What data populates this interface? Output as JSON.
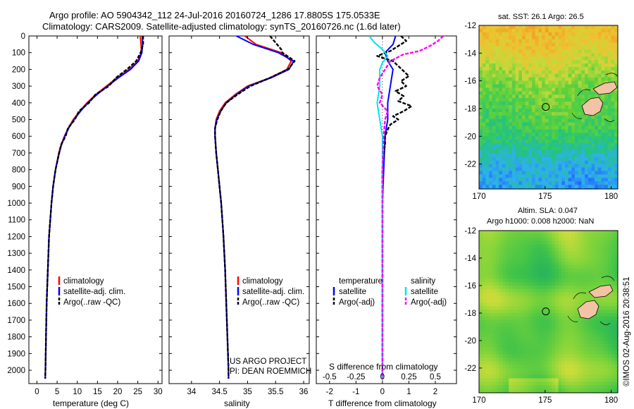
{
  "header": {
    "title_line1": "Argo profile: AO 5904342_112 24-Jul-2016 20160724_1286 17.8805S 175.0533E",
    "title_line2": "Climatology: CARS2009. Satellite-adjusted climatology: synTS_20160726.nc (1.6d later)"
  },
  "colors": {
    "climatology": "#ff0000",
    "satellite": "#0000ff",
    "argo": "#000000",
    "salinity_satellite": "#00e5ee",
    "salinity_argo": "#ff00ff"
  },
  "chart_data": [
    {
      "id": "temperature",
      "type": "line",
      "xlabel": "temperature (deg C)",
      "xlim": [
        -2,
        31
      ],
      "xticks": [
        0,
        5,
        10,
        15,
        20,
        25,
        30
      ],
      "ylim": [
        0,
        2080
      ],
      "yticks": [
        0,
        100,
        200,
        300,
        400,
        500,
        600,
        700,
        800,
        900,
        1000,
        1100,
        1200,
        1300,
        1400,
        1500,
        1600,
        1700,
        1800,
        1900,
        2000
      ],
      "legend": [
        "climatology",
        "satellite-adj. clim.",
        "Argo(..raw -QC)"
      ],
      "series": [
        {
          "name": "climatology",
          "y": [
            0,
            50,
            100,
            150,
            200,
            250,
            300,
            350,
            400,
            450,
            500,
            550,
            600,
            650,
            700,
            800,
            900,
            1000,
            1200,
            1400,
            1600,
            1800,
            2000,
            2050
          ],
          "x": [
            25.6,
            25.8,
            25.9,
            25.0,
            22.8,
            19.8,
            17.2,
            14.6,
            12.4,
            10.6,
            9.0,
            7.8,
            6.8,
            6.0,
            5.4,
            4.6,
            4.0,
            3.6,
            3.0,
            2.7,
            2.4,
            2.25,
            2.1,
            2.05
          ]
        },
        {
          "name": "satellite-adj. clim.",
          "y": [
            0,
            50,
            100,
            150,
            200,
            250,
            300,
            350,
            400,
            450,
            500,
            550,
            600,
            650,
            700,
            800,
            900,
            1000,
            1200,
            1400,
            1600,
            1800,
            2000,
            2050
          ],
          "x": [
            26.1,
            26.2,
            26.0,
            25.2,
            23.2,
            20.2,
            17.5,
            14.9,
            12.6,
            10.8,
            9.2,
            7.9,
            6.9,
            6.1,
            5.5,
            4.6,
            4.0,
            3.6,
            3.0,
            2.7,
            2.4,
            2.25,
            2.1,
            2.05
          ]
        },
        {
          "name": "Argo(..raw -QC)",
          "y": [
            0,
            50,
            100,
            150,
            200,
            250,
            300,
            350,
            400,
            450,
            500,
            550,
            600,
            650,
            700,
            800,
            900,
            1000,
            1200,
            1400,
            1600,
            1800,
            2000,
            2050
          ],
          "x": [
            26.3,
            26.3,
            25.7,
            24.6,
            22.3,
            19.6,
            17.8,
            14.5,
            12.9,
            10.4,
            9.4,
            7.7,
            7.1,
            6.0,
            5.5,
            4.6,
            4.0,
            3.6,
            3.0,
            2.7,
            2.4,
            2.25,
            2.1,
            2.05
          ]
        }
      ]
    },
    {
      "id": "salinity",
      "type": "line",
      "xlabel": "salinity",
      "xlim": [
        33.6,
        36.1
      ],
      "xticks": [
        34,
        34.5,
        35,
        35.5,
        36
      ],
      "ylim": [
        0,
        2080
      ],
      "legend": [
        "climatology",
        "satellite-adj. clim.",
        "Argo(..raw -QC)"
      ],
      "annotation_line1": "US ARGO PROJECT",
      "annotation_line2": "PI: DEAN ROEMMICH",
      "series": [
        {
          "name": "climatology",
          "y": [
            0,
            50,
            100,
            150,
            200,
            250,
            300,
            350,
            400,
            450,
            500,
            550,
            600,
            650,
            700,
            800,
            900,
            1000,
            1200,
            1400,
            1600,
            1800,
            2000,
            2050
          ],
          "x": [
            34.95,
            35.15,
            35.6,
            35.78,
            35.7,
            35.4,
            35.0,
            34.78,
            34.6,
            34.5,
            34.44,
            34.42,
            34.42,
            34.43,
            34.44,
            34.47,
            34.5,
            34.53,
            34.57,
            34.6,
            34.62,
            34.64,
            34.66,
            34.66
          ]
        },
        {
          "name": "satellite-adj. clim.",
          "y": [
            0,
            50,
            100,
            150,
            200,
            250,
            300,
            350,
            400,
            450,
            500,
            550,
            600,
            650,
            700,
            800,
            900,
            1000,
            1200,
            1400,
            1600,
            1800,
            2000,
            2050
          ],
          "x": [
            34.8,
            35.1,
            35.55,
            35.82,
            35.74,
            35.42,
            35.02,
            34.8,
            34.62,
            34.52,
            34.45,
            34.42,
            34.42,
            34.43,
            34.44,
            34.47,
            34.5,
            34.53,
            34.57,
            34.6,
            34.62,
            34.64,
            34.66,
            34.66
          ]
        },
        {
          "name": "Argo(..raw -QC)",
          "y": [
            0,
            20,
            40,
            60,
            80,
            100,
            150,
            200,
            250,
            300,
            350,
            400,
            450,
            500,
            550,
            600,
            650,
            700,
            800,
            900,
            1000,
            1200,
            1400,
            1600,
            1800,
            2000,
            2050
          ],
          "x": [
            35.4,
            35.45,
            35.5,
            35.55,
            35.6,
            35.62,
            35.84,
            35.72,
            35.4,
            35.05,
            34.82,
            34.62,
            34.52,
            34.46,
            34.42,
            34.42,
            34.43,
            34.44,
            34.47,
            34.5,
            34.53,
            34.57,
            34.6,
            34.62,
            34.64,
            34.66,
            34.66
          ]
        }
      ]
    },
    {
      "id": "difference",
      "type": "line",
      "xlabel": "T difference from climatology",
      "xlabel_top": "S difference from climatology",
      "xlim": [
        -2.5,
        2.8
      ],
      "xticks": [
        -2,
        -1,
        0,
        1,
        2
      ],
      "xticks_top_labels": [
        "-0.5",
        "-0.25",
        "0",
        "0.25",
        "0.5"
      ],
      "xticks_top_at": [
        -2,
        -1,
        0,
        1,
        2
      ],
      "legend_temperature_title": "temperature",
      "legend_salinity_title": "salinity",
      "legend": [
        "satellite",
        "Argo(-adj)",
        "satellite",
        "Argo(-adj)"
      ],
      "series": [
        {
          "name": "temperature satellite",
          "y": [
            0,
            50,
            100,
            150,
            200,
            300,
            400,
            500,
            600,
            800,
            1000,
            1200,
            1500,
            2000,
            2050
          ],
          "x": [
            0.5,
            0.4,
            0.1,
            0.2,
            0.4,
            0.3,
            0.2,
            0.2,
            0.1,
            0.05,
            0.0,
            0.0,
            0.0,
            0.0,
            0.0
          ]
        },
        {
          "name": "temperature Argo(-adj)",
          "y": [
            0,
            30,
            60,
            90,
            120,
            150,
            180,
            210,
            240,
            270,
            300,
            330,
            360,
            390,
            420,
            450,
            480,
            500,
            530,
            560,
            600,
            650,
            700,
            800,
            900,
            1000,
            1100,
            1200,
            1400,
            1600,
            1800,
            2000,
            2050
          ],
          "x": [
            0.7,
            0.9,
            0.6,
            0.3,
            -0.2,
            0.4,
            0.6,
            0.8,
            1.0,
            0.7,
            0.9,
            0.5,
            0.8,
            0.6,
            1.1,
            0.8,
            0.4,
            0.6,
            0.3,
            0.2,
            0.1,
            0.1,
            0.05,
            0.0,
            0.0,
            0.0,
            0.0,
            0.0,
            0.0,
            0.0,
            0.0,
            0.0,
            0.0
          ]
        },
        {
          "name": "salinity satellite",
          "y": [
            0,
            40,
            80,
            120,
            160,
            200,
            300,
            400,
            500,
            600,
            800,
            1000,
            1500,
            2000,
            2050
          ],
          "x": [
            -0.5,
            -0.3,
            0.0,
            0.2,
            0.0,
            -0.1,
            -0.1,
            -0.2,
            -0.1,
            0.0,
            0.0,
            0.0,
            0.0,
            0.0,
            0.0
          ]
        },
        {
          "name": "salinity Argo(-adj)",
          "y": [
            0,
            30,
            60,
            90,
            110,
            150,
            200,
            250,
            300,
            350,
            400,
            450,
            500,
            600,
            800,
            1000,
            1500,
            2000,
            2050
          ],
          "x": [
            2.3,
            2.1,
            1.8,
            1.4,
            0.8,
            0.3,
            0.1,
            -0.1,
            -0.2,
            0.0,
            -0.1,
            0.2,
            0.1,
            0.05,
            0.0,
            0.0,
            0.0,
            0.0,
            0.0
          ]
        }
      ]
    },
    {
      "id": "sst_map",
      "type": "heatmap",
      "title": "sat. SST: 26.1 Argo: 26.5",
      "xlim": [
        170,
        180.5
      ],
      "ylim": [
        -23.8,
        -12
      ],
      "xticks": [
        170,
        175,
        180
      ],
      "yticks": [
        -12,
        -14,
        -16,
        -18,
        -20,
        -22
      ],
      "argo_position": [
        175.05,
        -17.88
      ],
      "colorscale": [
        "#1f5bff",
        "#2fb0f0",
        "#22c47a",
        "#5ed13a",
        "#c8d93a",
        "#f0c030",
        "#f08a20"
      ]
    },
    {
      "id": "sla_map",
      "type": "heatmap",
      "title_line1": "Altim. SLA: 0.047",
      "title_line2": "Argo h1000: 0.008 h2000: NaN",
      "xlim": [
        170,
        180.5
      ],
      "ylim": [
        -23.8,
        -12
      ],
      "xticks": [
        170,
        175,
        180
      ],
      "yticks": [
        -12,
        -14,
        -16,
        -18,
        -20,
        -22
      ],
      "argo_position": [
        175.05,
        -17.88
      ]
    }
  ],
  "footer": {
    "credit": "©IMOS 02-Aug-2016 20:38:51"
  }
}
